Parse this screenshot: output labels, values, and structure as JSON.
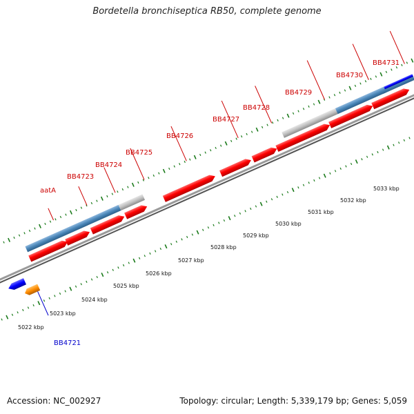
{
  "title": "Bordetella bronchiseptica RB50, complete genome",
  "accession": "Accession: NC_002927",
  "summary": "Topology: circular; Length: 5,339,179 bp; Genes: 5,059",
  "colors": {
    "gene_forward": "#ff0000",
    "gene_pseudo": "#c0c0c0",
    "gene_blue": "#0000ff",
    "gene_orange": "#ff8c00",
    "cds_band": "#4a86b8",
    "backbone": "#666666",
    "tick": "#1a7a1a",
    "label_red": "#cc0000",
    "label_blue": "#0000cc"
  },
  "gene_labels": [
    {
      "id": "aatA",
      "name": "aatA",
      "strand": "forward"
    },
    {
      "id": "BB4723",
      "name": "BB4723",
      "strand": "forward"
    },
    {
      "id": "BB4724",
      "name": "BB4724",
      "strand": "forward"
    },
    {
      "id": "BB4725",
      "name": "BB4725",
      "strand": "forward"
    },
    {
      "id": "BB4726",
      "name": "BB4726",
      "strand": "forward"
    },
    {
      "id": "BB4727",
      "name": "BB4727",
      "strand": "forward"
    },
    {
      "id": "BB4728",
      "name": "BB4728",
      "strand": "forward"
    },
    {
      "id": "BB4729",
      "name": "BB4729",
      "strand": "forward"
    },
    {
      "id": "BB4730",
      "name": "BB4730",
      "strand": "forward"
    },
    {
      "id": "BB4731",
      "name": "BB4731",
      "strand": "forward"
    },
    {
      "id": "BB4721",
      "name": "BB4721",
      "strand": "reverse"
    }
  ],
  "scale_labels": [
    "5022 kbp",
    "5023 kbp",
    "5024 kbp",
    "5025 kbp",
    "5026 kbp",
    "5027 kbp",
    "5028 kbp",
    "5029 kbp",
    "5030 kbp",
    "5031 kbp",
    "5032 kbp",
    "5033 kbp"
  ]
}
